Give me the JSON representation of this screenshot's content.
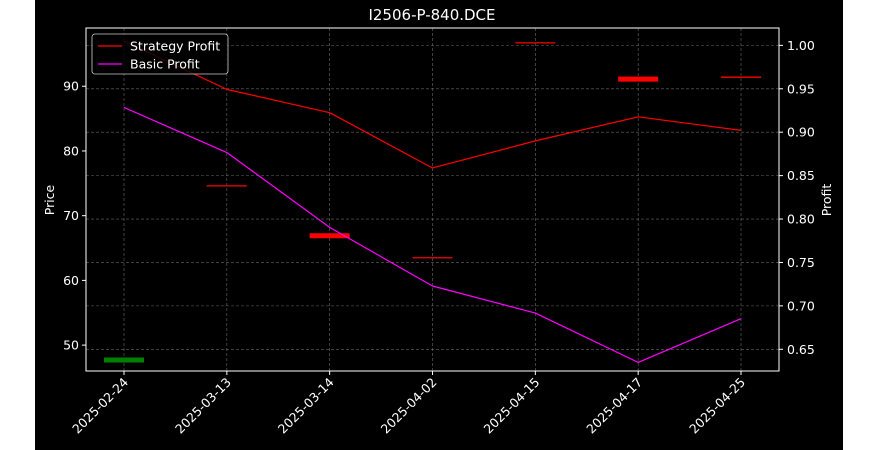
{
  "chart_data": {
    "type": "line",
    "title": "I2506-P-840.DCE",
    "xlabel": "",
    "ylabel_left": "Price",
    "ylabel_right": "Profit",
    "categories": [
      "2025-02-24",
      "2025-03-13",
      "2025-03-14",
      "2025-04-02",
      "2025-04-15",
      "2025-04-17",
      "2025-04-25"
    ],
    "y_left": {
      "range": [
        46,
        99
      ],
      "ticks": [
        50,
        60,
        70,
        80,
        90
      ]
    },
    "y_right": {
      "range": [
        0.625,
        1.02
      ],
      "ticks": [
        "0.65",
        "0.70",
        "0.75",
        "0.80",
        "0.85",
        "0.90",
        "0.95",
        "1.00"
      ]
    },
    "grid": true,
    "legend_position": "top-left",
    "series": [
      {
        "name": "Strategy Profit",
        "axis": "right",
        "color": "#ff0000",
        "values": [
          1.005,
          0.9493,
          0.9225,
          0.8588,
          0.89,
          0.9177,
          0.9021
        ]
      },
      {
        "name": "Basic Profit",
        "axis": "right",
        "color": "#ff00ff",
        "values": [
          0.9285,
          0.8766,
          0.7904,
          0.7229,
          0.6917,
          0.6349,
          0.6852
        ]
      }
    ],
    "price_markers": [
      {
        "x": "2025-02-24",
        "price": 47.7,
        "color": "#008000",
        "weight": "thick"
      },
      {
        "x": "2025-03-13",
        "price": 74.6,
        "color": "#ff0000",
        "weight": "thin"
      },
      {
        "x": "2025-03-14",
        "price": 66.9,
        "color": "#ff0000",
        "weight": "thick"
      },
      {
        "x": "2025-04-02",
        "price": 63.5,
        "color": "#ff0000",
        "weight": "thin"
      },
      {
        "x": "2025-04-15",
        "price": 96.7,
        "color": "#ff0000",
        "weight": "thin"
      },
      {
        "x": "2025-04-17",
        "price": 91.1,
        "color": "#ff0000",
        "weight": "thick"
      },
      {
        "x": "2025-04-25",
        "price": 91.4,
        "color": "#ff0000",
        "weight": "thin"
      }
    ]
  }
}
